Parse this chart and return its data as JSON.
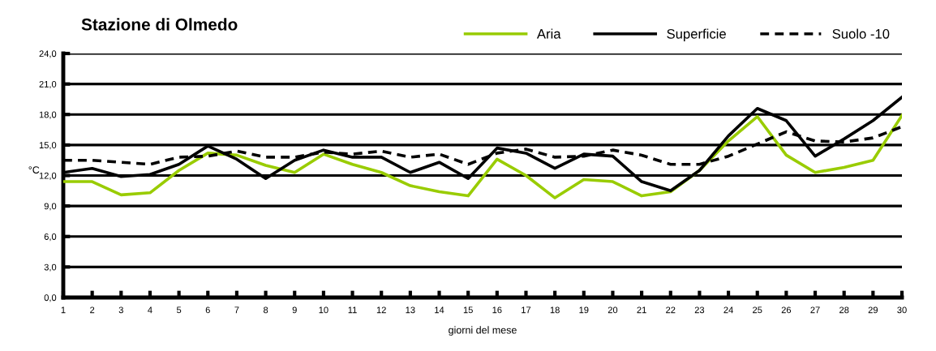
{
  "chart_data": {
    "type": "line",
    "title": "Stazione di Olmedo",
    "xlabel": "giorni del mese",
    "ylabel": "°C",
    "x": [
      1,
      2,
      3,
      4,
      5,
      6,
      7,
      8,
      9,
      10,
      11,
      12,
      13,
      14,
      15,
      16,
      17,
      18,
      19,
      20,
      21,
      22,
      23,
      24,
      25,
      26,
      27,
      28,
      29,
      30
    ],
    "xlim": [
      1,
      30
    ],
    "xticks": [
      1,
      2,
      3,
      4,
      5,
      6,
      7,
      8,
      9,
      10,
      11,
      12,
      13,
      14,
      15,
      16,
      17,
      18,
      19,
      20,
      21,
      22,
      23,
      24,
      25,
      26,
      27,
      28,
      29,
      30
    ],
    "ylim": [
      0,
      24
    ],
    "yticks": [
      {
        "value": 0,
        "label": "0,0"
      },
      {
        "value": 3,
        "label": "3,0"
      },
      {
        "value": 6,
        "label": "6,0"
      },
      {
        "value": 9,
        "label": "9,0"
      },
      {
        "value": 12,
        "label": "12,0"
      },
      {
        "value": 15,
        "label": "15,0"
      },
      {
        "value": 18,
        "label": "18,0"
      },
      {
        "value": 21,
        "label": "21,0"
      },
      {
        "value": 24,
        "label": "24,0"
      }
    ],
    "grid": "y",
    "legend": "top",
    "marker": "none",
    "series": [
      {
        "name": "Aria",
        "color": "#99cc00",
        "line_style": "solid",
        "values": [
          11.4,
          11.4,
          10.1,
          10.3,
          12.5,
          14.2,
          14.0,
          13.0,
          12.3,
          14.1,
          13.1,
          12.3,
          11.0,
          10.4,
          10.0,
          13.6,
          12.0,
          9.8,
          11.6,
          11.4,
          10.0,
          10.4,
          12.5,
          15.4,
          17.8,
          14.0,
          12.3,
          12.8,
          13.5,
          17.9
        ]
      },
      {
        "name": "Superficie",
        "color": "#000000",
        "line_style": "solid",
        "values": [
          12.3,
          12.7,
          11.9,
          12.1,
          13.1,
          14.9,
          13.6,
          11.7,
          13.5,
          14.5,
          13.8,
          13.8,
          12.3,
          13.3,
          11.7,
          14.7,
          14.2,
          12.7,
          14.1,
          13.9,
          11.4,
          10.5,
          12.5,
          15.9,
          18.6,
          17.4,
          13.9,
          15.6,
          17.4,
          19.7
        ]
      },
      {
        "name": "Suolo -10",
        "color": "#000000",
        "line_style": "dashed",
        "values": [
          13.5,
          13.5,
          13.3,
          13.1,
          13.8,
          13.9,
          14.4,
          13.8,
          13.8,
          14.3,
          14.1,
          14.4,
          13.8,
          14.1,
          13.1,
          14.2,
          14.6,
          13.8,
          13.9,
          14.5,
          14.0,
          13.1,
          13.1,
          13.9,
          15.1,
          16.3,
          15.4,
          15.3,
          15.7,
          16.8
        ]
      }
    ]
  }
}
